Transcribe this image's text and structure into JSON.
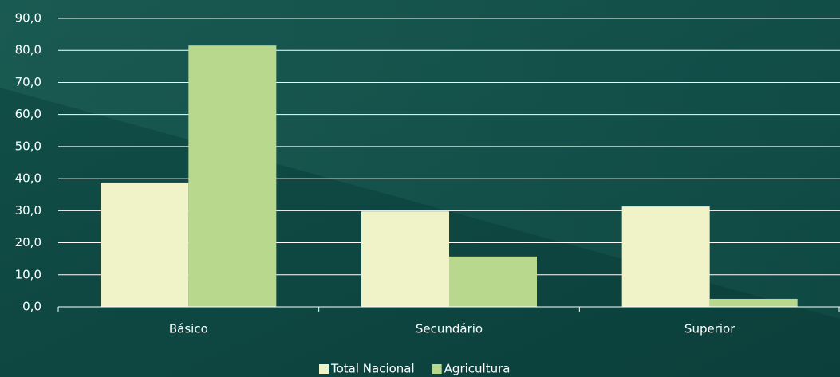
{
  "chart_data": {
    "type": "bar",
    "categories": [
      "Básico",
      "Secundário",
      "Superior"
    ],
    "series": [
      {
        "name": "Total Nacional",
        "color": "#f0f2c8",
        "values": [
          38.8,
          29.8,
          31.3
        ]
      },
      {
        "name": "Agricultura",
        "color": "#b8d88e",
        "values": [
          81.5,
          15.7,
          2.5
        ]
      }
    ],
    "ylim": [
      0,
      90
    ],
    "yticks": [
      {
        "value": 0,
        "label": "0,0"
      },
      {
        "value": 10,
        "label": "10,0"
      },
      {
        "value": 20,
        "label": "20,0"
      },
      {
        "value": 30,
        "label": "30,0"
      },
      {
        "value": 40,
        "label": "40,0"
      },
      {
        "value": 50,
        "label": "50,0"
      },
      {
        "value": 60,
        "label": "60,0"
      },
      {
        "value": 70,
        "label": "70,0"
      },
      {
        "value": 80,
        "label": "80,0"
      },
      {
        "value": 90,
        "label": "90,0"
      }
    ],
    "grid": true,
    "legend": "bottom"
  }
}
